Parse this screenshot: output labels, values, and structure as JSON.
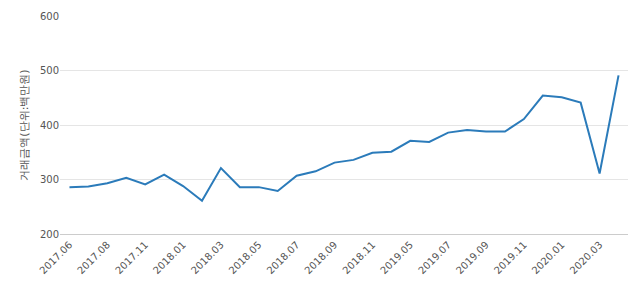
{
  "chart_data": {
    "type": "line",
    "y_label": "거래금액(단위:백만원)",
    "categories": [
      "2017.06",
      null,
      "2017.08",
      null,
      "2017.11",
      null,
      "2018.01",
      null,
      "2018.03",
      null,
      "2018.05",
      null,
      "2018.07",
      null,
      "2018.09",
      null,
      "2018.11",
      null,
      "2019.05",
      null,
      "2019.07",
      null,
      "2019.09",
      null,
      "2019.11",
      null,
      "2020.01",
      null,
      "2020.03",
      null
    ],
    "values": [
      286,
      287,
      293,
      303,
      291,
      309,
      288,
      261,
      321,
      286,
      286,
      279,
      307,
      315,
      331,
      336,
      349,
      351,
      371,
      369,
      386,
      391,
      388,
      388,
      411,
      454,
      451,
      441,
      311,
      491
    ],
    "color": "#2b7bba",
    "ylim": [
      200,
      600
    ],
    "yticks": [
      200,
      300,
      400,
      500,
      600
    ],
    "grid": true
  }
}
